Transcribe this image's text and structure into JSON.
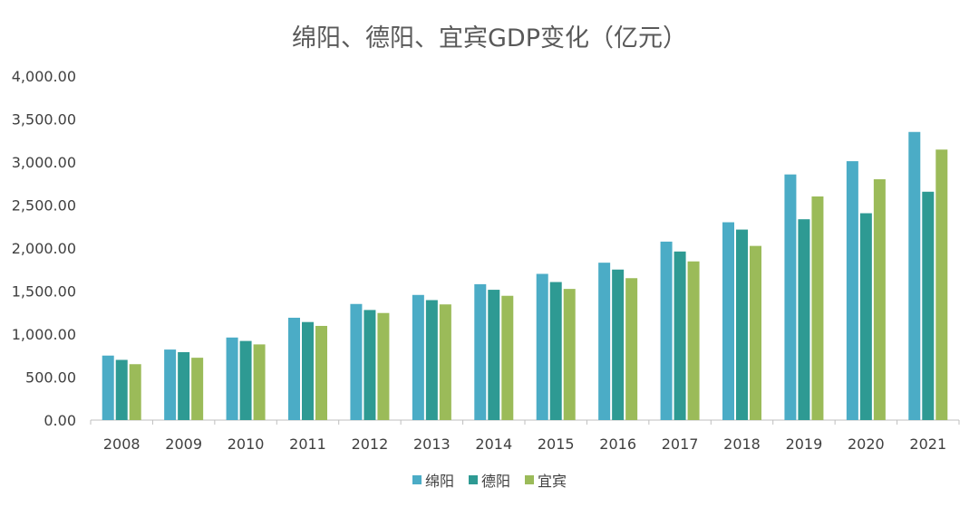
{
  "chart_data": {
    "type": "bar",
    "title": "绵阳、德阳、宜宾GDP变化（亿元）",
    "categories": [
      "2008",
      "2009",
      "2010",
      "2011",
      "2012",
      "2013",
      "2014",
      "2015",
      "2016",
      "2017",
      "2018",
      "2019",
      "2020",
      "2021"
    ],
    "series": [
      {
        "name": "绵阳",
        "color": "#4BACC6",
        "values": [
          750,
          820,
          960,
          1190,
          1350,
          1455,
          1580,
          1700,
          1830,
          2075,
          2300,
          2856,
          3010,
          3350
        ]
      },
      {
        "name": "德阳",
        "color": "#2E9A93",
        "values": [
          700,
          790,
          920,
          1140,
          1280,
          1395,
          1515,
          1605,
          1750,
          1960,
          2215,
          2335,
          2405,
          2655
        ]
      },
      {
        "name": "宜宾",
        "color": "#9BBB59",
        "values": [
          650,
          725,
          880,
          1095,
          1245,
          1345,
          1445,
          1525,
          1650,
          1845,
          2025,
          2600,
          2800,
          3145
        ]
      }
    ],
    "ylim": [
      0,
      4000
    ],
    "yticks": [
      0,
      500,
      1000,
      1500,
      2000,
      2500,
      3000,
      3500,
      4000
    ],
    "ytick_labels": [
      "0.00",
      "500.00",
      "1,000.00",
      "1,500.00",
      "2,000.00",
      "2,500.00",
      "3,000.00",
      "3,500.00",
      "4,000.00"
    ],
    "grid": false,
    "legend_position": "bottom"
  }
}
